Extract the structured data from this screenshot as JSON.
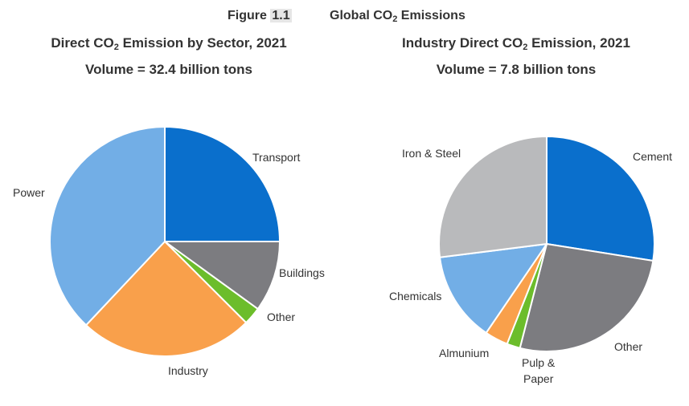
{
  "figure": {
    "label_prefix": "Figure ",
    "label_number": "1.1",
    "title_main": "Global CO",
    "title_sub": "2",
    "title_rest": " Emissions"
  },
  "chart_data": [
    {
      "type": "pie",
      "title_main": "Direct CO",
      "title_sub": "2",
      "title_rest": " Emission by Sector, 2021",
      "subtitle": "Volume = 32.4 billion tons",
      "start_angle_deg": 0,
      "direction": "clockwise",
      "slices": [
        {
          "label": "Transport",
          "value": 25,
          "color": "#0a6fcc"
        },
        {
          "label": "Buildings",
          "value": 10,
          "color": "#7c7c80"
        },
        {
          "label": "Other",
          "value": 2.5,
          "color": "#6cbd2b"
        },
        {
          "label": "Industry",
          "value": 24.5,
          "color": "#f9a04b"
        },
        {
          "label": "Power",
          "value": 38,
          "color": "#72aee6"
        }
      ]
    },
    {
      "type": "pie",
      "title": "Industry Direct CO2 Emission, 2021",
      "title_main": "Industry Direct CO",
      "title_sub": "2",
      "title_rest": " Emission, 2021",
      "subtitle": "Volume = 7.8 billion tons",
      "start_angle_deg": 0,
      "direction": "clockwise",
      "slices": [
        {
          "label": "Cement",
          "value": 27.5,
          "color": "#0a6fcc"
        },
        {
          "label": "Other",
          "value": 26.5,
          "color": "#7c7c80"
        },
        {
          "label": "Pulp & Paper",
          "value": 2,
          "color": "#6cbd2b"
        },
        {
          "label": "Almunium",
          "value": 3.5,
          "color": "#f9a04b"
        },
        {
          "label": "Chemicals",
          "value": 13.5,
          "color": "#72aee6"
        },
        {
          "label": "Iron & Steel",
          "value": 27,
          "color": "#b9babc"
        }
      ]
    }
  ]
}
